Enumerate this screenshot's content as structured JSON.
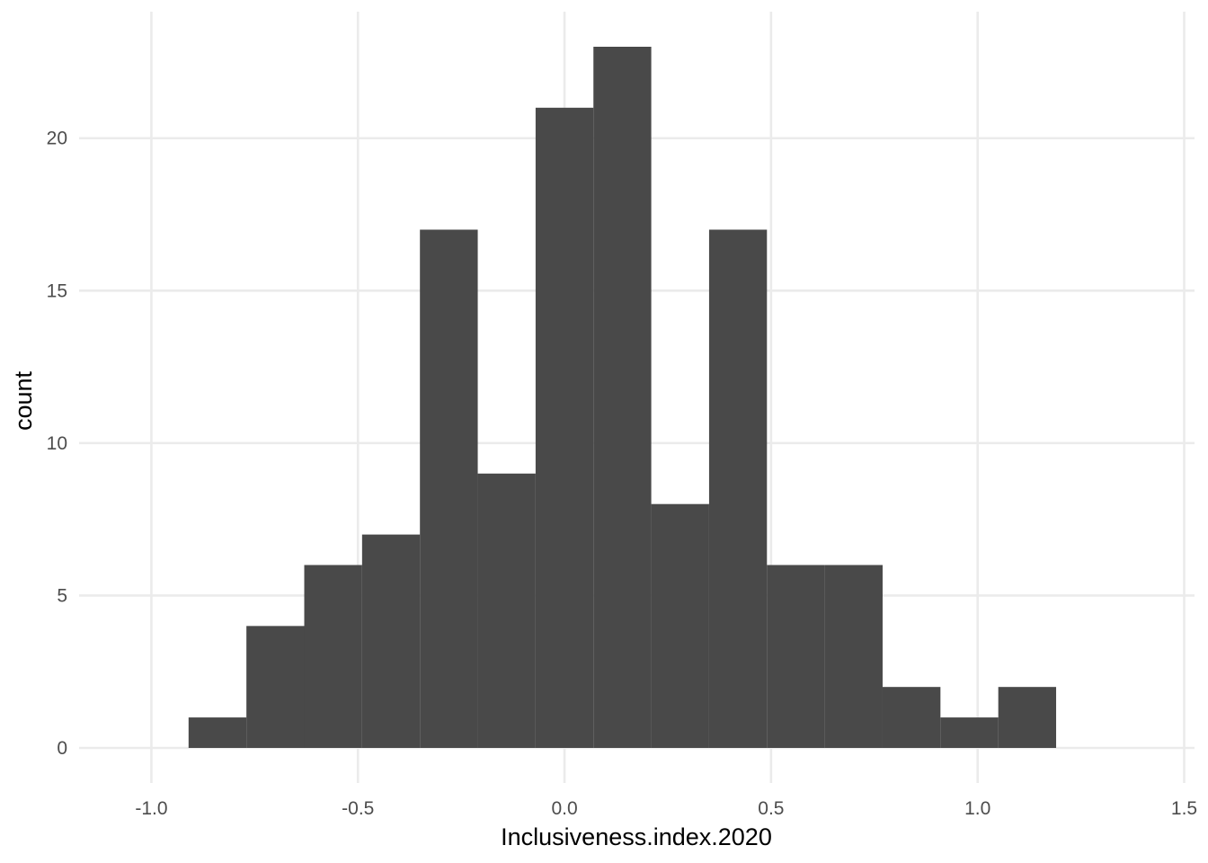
{
  "chart_data": {
    "type": "bar",
    "subtype": "histogram",
    "title": "",
    "xlabel": "Inclusiveness.index.2020",
    "ylabel": "count",
    "xlim": [
      -1.175,
      1.525
    ],
    "ylim": [
      -1.15,
      24.15
    ],
    "x_ticks": [
      -1.0,
      -0.5,
      0.0,
      0.5,
      1.0,
      1.5
    ],
    "x_tick_labels": [
      "-1.0",
      "-0.5",
      "0.0",
      "0.5",
      "1.0",
      "1.5"
    ],
    "y_ticks": [
      0,
      5,
      10,
      15,
      20
    ],
    "y_tick_labels": [
      "0",
      "5",
      "10",
      "15",
      "20"
    ],
    "bin_width": 0.14,
    "bins": [
      {
        "x0": -0.91,
        "x1": -0.77,
        "count": 1
      },
      {
        "x0": -0.77,
        "x1": -0.63,
        "count": 4
      },
      {
        "x0": -0.63,
        "x1": -0.49,
        "count": 6
      },
      {
        "x0": -0.49,
        "x1": -0.35,
        "count": 7
      },
      {
        "x0": -0.35,
        "x1": -0.21,
        "count": 17
      },
      {
        "x0": -0.21,
        "x1": -0.07,
        "count": 9
      },
      {
        "x0": -0.07,
        "x1": 0.07,
        "count": 21
      },
      {
        "x0": 0.07,
        "x1": 0.21,
        "count": 23
      },
      {
        "x0": 0.21,
        "x1": 0.35,
        "count": 8
      },
      {
        "x0": 0.35,
        "x1": 0.49,
        "count": 17
      },
      {
        "x0": 0.49,
        "x1": 0.63,
        "count": 6
      },
      {
        "x0": 0.63,
        "x1": 0.77,
        "count": 6
      },
      {
        "x0": 0.77,
        "x1": 0.91,
        "count": 2
      },
      {
        "x0": 0.91,
        "x1": 1.05,
        "count": 1
      },
      {
        "x0": 1.05,
        "x1": 1.19,
        "count": 2
      }
    ],
    "bar_color": "#494949",
    "grid": true,
    "grid_color": "#ebebeb",
    "legend": "none"
  }
}
